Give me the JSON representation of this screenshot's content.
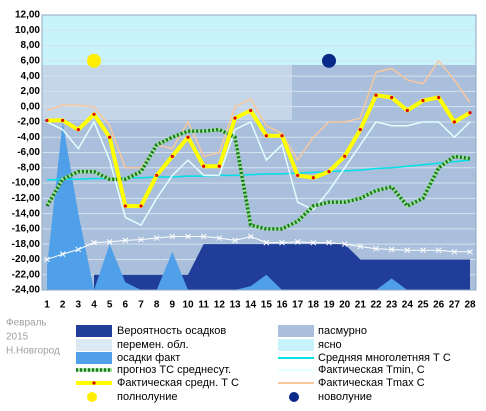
{
  "chart_data": {
    "type": "line",
    "caption": [
      "Февраль",
      "2015",
      "Н.Новгород"
    ],
    "x": [
      1,
      2,
      3,
      4,
      5,
      6,
      7,
      8,
      9,
      10,
      11,
      12,
      13,
      14,
      15,
      16,
      17,
      18,
      19,
      20,
      21,
      22,
      23,
      24,
      25,
      26,
      27,
      28
    ],
    "xlim": [
      1,
      28
    ],
    "xticks": [
      1,
      2,
      3,
      4,
      5,
      6,
      7,
      8,
      9,
      10,
      11,
      12,
      13,
      14,
      15,
      16,
      17,
      18,
      19,
      20,
      21,
      22,
      23,
      24,
      25,
      26,
      27,
      28
    ],
    "ylim": [
      -24,
      12
    ],
    "yticks": [
      {
        "value": 12,
        "label": "12,00"
      },
      {
        "value": 10,
        "label": "10,00"
      },
      {
        "value": 8,
        "label": "8,00"
      },
      {
        "value": 6,
        "label": "6,00"
      },
      {
        "value": 4,
        "label": "4,00"
      },
      {
        "value": 2,
        "label": "2,00"
      },
      {
        "value": 0,
        "label": "0,00"
      },
      {
        "value": -2,
        "label": "-2,00"
      },
      {
        "value": -4,
        "label": "-4,00"
      },
      {
        "value": -6,
        "label": "-6,00"
      },
      {
        "value": -8,
        "label": "-8,00"
      },
      {
        "value": -10,
        "label": "-10,00"
      },
      {
        "value": -12,
        "label": "-12,00"
      },
      {
        "value": -14,
        "label": "-14,00"
      },
      {
        "value": -16,
        "label": "-16,00"
      },
      {
        "value": -18,
        "label": "-18,00"
      },
      {
        "value": -20,
        "label": "-20,00"
      },
      {
        "value": -22,
        "label": "-22,00"
      },
      {
        "value": -24,
        "label": "-24,00"
      }
    ],
    "grid": true,
    "series": [
      {
        "name": "Вероятность осадков",
        "color": "#1f3d99",
        "kind": "area",
        "values": [
          null,
          null,
          null,
          -22,
          -22,
          -22,
          -22,
          -22,
          -22,
          -22,
          -18,
          -18,
          -18,
          -18,
          -18,
          -18,
          -18,
          -18,
          -18,
          -18,
          -20,
          -20,
          -20,
          -20,
          -20,
          -20,
          -20,
          -20
        ]
      },
      {
        "name": "осадки факт",
        "color": "#4fa0e8",
        "kind": "area",
        "values": [
          -21,
          -2,
          -14,
          -24,
          -18,
          -23,
          -24,
          -24,
          -19,
          -24,
          -24,
          -24,
          -24,
          -23.5,
          -22,
          -24,
          -24,
          -24,
          -24,
          -24,
          -24,
          -24,
          -22.5,
          -24,
          -24,
          -24,
          -24,
          -24
        ]
      },
      {
        "color": "#ffffff",
        "kind": "cross",
        "values": [
          -20,
          -19.3,
          -18.7,
          -17.8,
          -17.7,
          -17.5,
          -17.4,
          -17.2,
          -17,
          -17,
          -17,
          -17.2,
          -17.5,
          -17,
          -17.8,
          -17.8,
          -17.7,
          -17.8,
          -17.8,
          -18,
          -18.3,
          -18.6,
          -18.7,
          -18.8,
          -18.8,
          -18.8,
          -19,
          -19
        ]
      },
      {
        "name": "Средняя многолетняя Т С",
        "color": "#00e0e6",
        "kind": "line",
        "values": [
          -9.6,
          -9.5,
          -9.5,
          -9.4,
          -9.4,
          -9.3,
          -9.3,
          -9.2,
          -9.2,
          -9.1,
          -9.1,
          -9.0,
          -9.0,
          -8.9,
          -8.8,
          -8.8,
          -8.7,
          -8.6,
          -8.5,
          -8.4,
          -8.3,
          -8.1,
          -8.0,
          -7.8,
          -7.6,
          -7.4,
          -7.2,
          -7.0
        ]
      },
      {
        "name": "Фактическая Tmin, C",
        "color": "#e4ffff",
        "kind": "line",
        "values": [
          -2,
          -3,
          -5.5,
          -2,
          -7,
          -14.5,
          -15.5,
          -12,
          -9,
          -7,
          -9,
          -9,
          -3,
          -2,
          -7,
          -5,
          -12.5,
          -13.5,
          -11,
          -8,
          -5,
          -2,
          -2.5,
          -2.5,
          -2,
          -2,
          -4,
          -2
        ]
      },
      {
        "name": "Фактическая Tmax С",
        "color": "#f7c8a0",
        "kind": "line",
        "values": [
          -0.5,
          0.2,
          0.2,
          0,
          -2.5,
          -8,
          -8,
          -5,
          -5.5,
          -2,
          -6.5,
          -6,
          0,
          1,
          -2.5,
          -3.5,
          -7,
          -4,
          -2,
          -2,
          -1.5,
          4.5,
          5,
          3.5,
          3,
          6,
          3.5,
          0.5
        ]
      },
      {
        "name": "прогноз ТС среднесут.",
        "color": "#1a7a1a",
        "kind": "dotted",
        "values": [
          -13,
          -9.5,
          -8.5,
          -8.5,
          -9.5,
          -9.5,
          -8.5,
          -5,
          -4,
          -3.2,
          -3.2,
          -3,
          -4,
          -15.5,
          -16,
          -16,
          -15,
          -13,
          -12.5,
          -12.5,
          -12,
          -11,
          -10.5,
          -13,
          -12,
          -8,
          -6.5,
          -6.8
        ]
      },
      {
        "name": "Фактическая средн. Т С",
        "color": "#ffff00",
        "dot_color": "#e00000",
        "kind": "thick",
        "values": [
          -1.8,
          -1.8,
          -3,
          -1,
          -4,
          -13,
          -13,
          -9,
          -6.5,
          -4,
          -7.8,
          -7.8,
          -1.5,
          -0.5,
          -3.8,
          -3.8,
          -9,
          -9.3,
          -8.5,
          -6.5,
          -3,
          1.5,
          1.2,
          -0.5,
          0.8,
          1.2,
          -2,
          -0.8
        ]
      }
    ],
    "sky": [
      {
        "name": "пасмурно",
        "color": "#a9bfdb"
      },
      {
        "name": "перемен. обл.",
        "color": "#dde9f2"
      },
      {
        "name": "ясно",
        "color": "#c9f3fa"
      }
    ],
    "moon": [
      {
        "name": "полнолуние",
        "color": "#ffee00",
        "x": 4,
        "y": 6
      },
      {
        "name": "новолуние",
        "color": "#0a2a8a",
        "x": 19,
        "y": 6
      }
    ]
  }
}
